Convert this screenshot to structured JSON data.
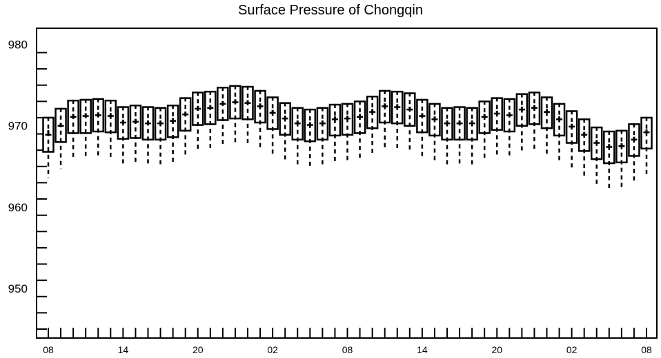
{
  "chart_data": {
    "type": "boxplot",
    "title": "Surface Pressure of Chongqin",
    "xlabel": "",
    "ylabel": "",
    "ylim": [
      943.9,
      982.0
    ],
    "y_ticks": [
      950,
      960,
      970,
      980
    ],
    "x_tick_labels": [
      "08",
      "14",
      "20",
      "02",
      "08",
      "14",
      "20",
      "02",
      "08"
    ],
    "x_tick_positions": [
      0,
      6,
      12,
      18,
      24,
      30,
      36,
      42,
      48
    ],
    "grid": false,
    "series": [
      {
        "boxes": [
          {
            "x": 0,
            "whisker_low": 963.6,
            "q1": 966.8,
            "median": 968.9,
            "mean": 969.2,
            "q3": 971.0,
            "whisker_high": 971.1
          },
          {
            "x": 1,
            "whisker_low": 964.7,
            "q1": 968.0,
            "median": 970.0,
            "mean": 970.1,
            "q3": 972.1,
            "whisker_high": 972.2
          },
          {
            "x": 2,
            "whisker_low": 965.8,
            "q1": 969.1,
            "median": 971.1,
            "mean": 971.2,
            "q3": 973.1,
            "whisker_high": 973.2
          },
          {
            "x": 3,
            "whisker_low": 965.9,
            "q1": 969.1,
            "median": 971.2,
            "mean": 971.3,
            "q3": 973.2,
            "whisker_high": 973.3
          },
          {
            "x": 4,
            "whisker_low": 966.1,
            "q1": 969.3,
            "median": 971.3,
            "mean": 971.4,
            "q3": 973.3,
            "whisker_high": 973.4
          },
          {
            "x": 5,
            "whisker_low": 966.0,
            "q1": 969.2,
            "median": 971.2,
            "mean": 971.3,
            "q3": 973.1,
            "whisker_high": 973.2
          },
          {
            "x": 6,
            "whisker_low": 965.2,
            "q1": 968.4,
            "median": 970.4,
            "mean": 970.5,
            "q3": 972.3,
            "whisker_high": 972.4
          },
          {
            "x": 7,
            "whisker_low": 965.3,
            "q1": 968.5,
            "median": 970.5,
            "mean": 970.6,
            "q3": 972.5,
            "whisker_high": 972.6
          },
          {
            "x": 8,
            "whisker_low": 965.1,
            "q1": 968.3,
            "median": 970.3,
            "mean": 970.4,
            "q3": 972.3,
            "whisker_high": 972.4
          },
          {
            "x": 9,
            "whisker_low": 965.0,
            "q1": 968.3,
            "median": 970.3,
            "mean": 970.4,
            "q3": 972.2,
            "whisker_high": 972.3
          },
          {
            "x": 10,
            "whisker_low": 965.3,
            "q1": 968.6,
            "median": 970.6,
            "mean": 970.7,
            "q3": 972.5,
            "whisker_high": 972.6
          },
          {
            "x": 11,
            "whisker_low": 966.2,
            "q1": 969.4,
            "median": 971.4,
            "mean": 971.5,
            "q3": 973.4,
            "whisker_high": 973.5
          },
          {
            "x": 12,
            "whisker_low": 966.8,
            "q1": 970.1,
            "median": 972.1,
            "mean": 972.2,
            "q3": 974.1,
            "whisker_high": 974.2
          },
          {
            "x": 13,
            "whisker_low": 966.9,
            "q1": 970.2,
            "median": 972.2,
            "mean": 972.3,
            "q3": 974.2,
            "whisker_high": 974.3
          },
          {
            "x": 14,
            "whisker_low": 967.4,
            "q1": 970.7,
            "median": 972.7,
            "mean": 972.8,
            "q3": 974.7,
            "whisker_high": 974.8
          },
          {
            "x": 15,
            "whisker_low": 967.6,
            "q1": 970.9,
            "median": 972.9,
            "mean": 973.0,
            "q3": 974.9,
            "whisker_high": 975.0
          },
          {
            "x": 16,
            "whisker_low": 967.5,
            "q1": 970.8,
            "median": 972.8,
            "mean": 972.9,
            "q3": 974.8,
            "whisker_high": 974.9
          },
          {
            "x": 17,
            "whisker_low": 967.2,
            "q1": 970.4,
            "median": 972.4,
            "mean": 972.5,
            "q3": 974.3,
            "whisker_high": 974.4
          },
          {
            "x": 18,
            "whisker_low": 966.4,
            "q1": 969.6,
            "median": 971.6,
            "mean": 971.7,
            "q3": 973.5,
            "whisker_high": 973.6
          },
          {
            "x": 19,
            "whisker_low": 965.7,
            "q1": 968.9,
            "median": 970.9,
            "mean": 971.0,
            "q3": 972.8,
            "whisker_high": 972.9
          },
          {
            "x": 20,
            "whisker_low": 965.0,
            "q1": 968.3,
            "median": 970.3,
            "mean": 970.4,
            "q3": 972.2,
            "whisker_high": 972.3
          },
          {
            "x": 21,
            "whisker_low": 964.8,
            "q1": 968.1,
            "median": 970.1,
            "mean": 970.2,
            "q3": 972.0,
            "whisker_high": 972.1
          },
          {
            "x": 22,
            "whisker_low": 965.1,
            "q1": 968.3,
            "median": 970.3,
            "mean": 970.4,
            "q3": 972.2,
            "whisker_high": 972.3
          },
          {
            "x": 23,
            "whisker_low": 965.6,
            "q1": 968.8,
            "median": 970.8,
            "mean": 970.9,
            "q3": 972.6,
            "whisker_high": 972.7
          },
          {
            "x": 24,
            "whisker_low": 965.7,
            "q1": 968.9,
            "median": 970.9,
            "mean": 971.0,
            "q3": 972.7,
            "whisker_high": 972.8
          },
          {
            "x": 25,
            "whisker_low": 965.9,
            "q1": 969.1,
            "median": 971.1,
            "mean": 971.2,
            "q3": 973.0,
            "whisker_high": 973.1
          },
          {
            "x": 26,
            "whisker_low": 966.5,
            "q1": 969.7,
            "median": 971.7,
            "mean": 971.8,
            "q3": 973.6,
            "whisker_high": 973.7
          },
          {
            "x": 27,
            "whisker_low": 967.2,
            "q1": 970.4,
            "median": 972.4,
            "mean": 972.5,
            "q3": 974.3,
            "whisker_high": 974.4
          },
          {
            "x": 28,
            "whisker_low": 967.1,
            "q1": 970.3,
            "median": 972.3,
            "mean": 972.4,
            "q3": 974.2,
            "whisker_high": 974.3
          },
          {
            "x": 29,
            "whisker_low": 966.8,
            "q1": 970.0,
            "median": 972.0,
            "mean": 972.1,
            "q3": 974.0,
            "whisker_high": 974.1
          },
          {
            "x": 30,
            "whisker_low": 966.0,
            "q1": 969.2,
            "median": 971.2,
            "mean": 971.3,
            "q3": 973.2,
            "whisker_high": 973.3
          },
          {
            "x": 31,
            "whisker_low": 965.5,
            "q1": 968.8,
            "median": 970.8,
            "mean": 970.9,
            "q3": 972.7,
            "whisker_high": 972.8
          },
          {
            "x": 32,
            "whisker_low": 965.0,
            "q1": 968.3,
            "median": 970.3,
            "mean": 970.4,
            "q3": 972.2,
            "whisker_high": 972.3
          },
          {
            "x": 33,
            "whisker_low": 965.0,
            "q1": 968.3,
            "median": 970.3,
            "mean": 970.4,
            "q3": 972.3,
            "whisker_high": 972.4
          },
          {
            "x": 34,
            "whisker_low": 965.1,
            "q1": 968.3,
            "median": 970.3,
            "mean": 970.4,
            "q3": 972.2,
            "whisker_high": 972.3
          },
          {
            "x": 35,
            "whisker_low": 965.8,
            "q1": 969.1,
            "median": 971.1,
            "mean": 971.2,
            "q3": 973.0,
            "whisker_high": 973.1
          },
          {
            "x": 36,
            "whisker_low": 966.3,
            "q1": 969.5,
            "median": 971.5,
            "mean": 971.6,
            "q3": 973.4,
            "whisker_high": 973.5
          },
          {
            "x": 37,
            "whisker_low": 966.2,
            "q1": 969.3,
            "median": 971.3,
            "mean": 971.4,
            "q3": 973.3,
            "whisker_high": 973.4
          },
          {
            "x": 38,
            "whisker_low": 966.8,
            "q1": 970.0,
            "median": 972.0,
            "mean": 972.1,
            "q3": 973.9,
            "whisker_high": 974.0
          },
          {
            "x": 39,
            "whisker_low": 967.0,
            "q1": 970.2,
            "median": 972.2,
            "mean": 972.3,
            "q3": 974.1,
            "whisker_high": 974.2
          },
          {
            "x": 40,
            "whisker_low": 966.5,
            "q1": 969.7,
            "median": 971.7,
            "mean": 971.8,
            "q3": 973.5,
            "whisker_high": 973.6
          },
          {
            "x": 41,
            "whisker_low": 965.6,
            "q1": 968.8,
            "median": 970.8,
            "mean": 970.9,
            "q3": 972.7,
            "whisker_high": 972.8
          },
          {
            "x": 42,
            "whisker_low": 964.6,
            "q1": 967.9,
            "median": 969.9,
            "mean": 970.0,
            "q3": 971.8,
            "whisker_high": 971.9
          },
          {
            "x": 43,
            "whisker_low": 963.6,
            "q1": 966.9,
            "median": 968.9,
            "mean": 969.0,
            "q3": 970.8,
            "whisker_high": 970.9
          },
          {
            "x": 44,
            "whisker_low": 962.6,
            "q1": 965.9,
            "median": 967.9,
            "mean": 968.0,
            "q3": 969.8,
            "whisker_high": 969.9
          },
          {
            "x": 45,
            "whisker_low": 962.2,
            "q1": 965.4,
            "median": 967.4,
            "mean": 967.5,
            "q3": 969.3,
            "whisker_high": 969.4
          },
          {
            "x": 46,
            "whisker_low": 962.3,
            "q1": 965.5,
            "median": 967.5,
            "mean": 967.6,
            "q3": 969.4,
            "whisker_high": 969.5
          },
          {
            "x": 47,
            "whisker_low": 963.1,
            "q1": 966.3,
            "median": 968.3,
            "mean": 968.4,
            "q3": 970.2,
            "whisker_high": 970.3
          },
          {
            "x": 48,
            "whisker_low": 964.0,
            "q1": 967.2,
            "median": 969.2,
            "mean": 969.3,
            "q3": 971.0,
            "whisker_high": 971.1
          }
        ]
      }
    ],
    "colors": {
      "box_stroke": "#000000",
      "background": "#ffffff",
      "frame": "#000000"
    }
  }
}
